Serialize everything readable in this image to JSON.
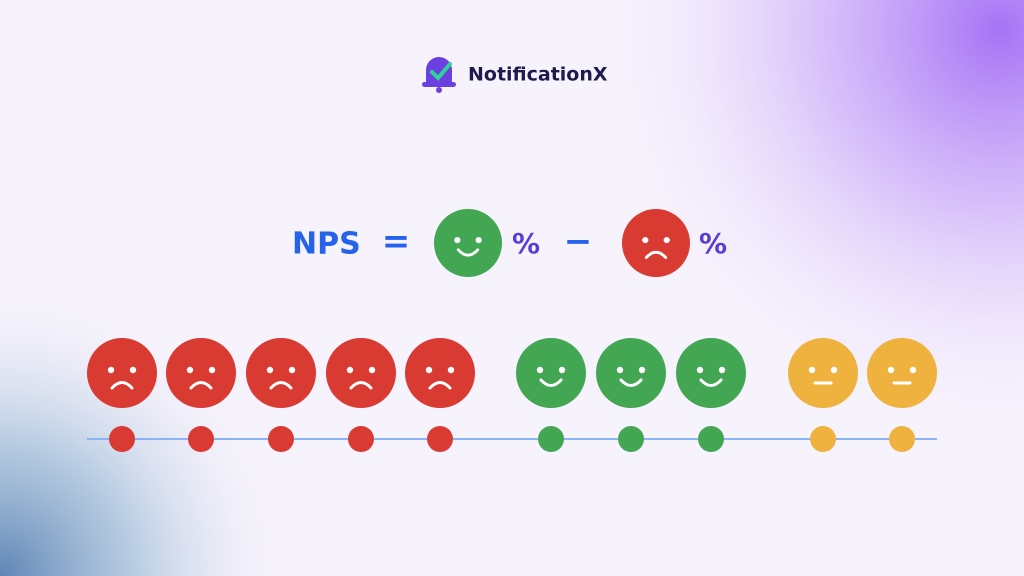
{
  "header": {
    "brand": "NotificationX"
  },
  "formula": {
    "label": "NPS",
    "equals": "=",
    "promoter_unit": "%",
    "minus": "−",
    "detractor_unit": "%"
  }
}
